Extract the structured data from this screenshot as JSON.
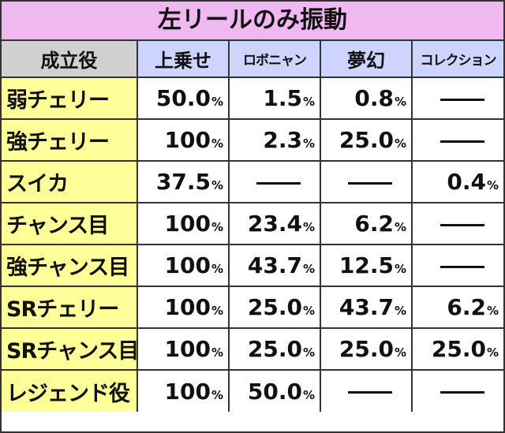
{
  "title": "左リールのみ振動",
  "headers": [
    "成立役",
    "上乗せ",
    "ロボニャン",
    "夢幻",
    "コレクション"
  ],
  "rows": [
    {
      "label": "弱チェリー",
      "values": [
        "50.0",
        "1.5",
        "0.8",
        null
      ]
    },
    {
      "label": "強チェリー",
      "values": [
        "100",
        "2.3",
        "25.0",
        null
      ]
    },
    {
      "label": "スイカ",
      "values": [
        "37.5",
        null,
        null,
        "0.4"
      ]
    },
    {
      "label": "チャンス目",
      "values": [
        "100",
        "23.4",
        "6.2",
        null
      ]
    },
    {
      "label": "強チャンス目",
      "values": [
        "100",
        "43.7",
        "12.5",
        null
      ]
    },
    {
      "label": "SRチェリー",
      "values": [
        "100",
        "25.0",
        "43.7",
        "6.2"
      ]
    },
    {
      "label": "SRチャンス目",
      "values": [
        "100",
        "25.0",
        "25.0",
        "25.0"
      ]
    },
    {
      "label": "レジェンド役",
      "values": [
        "100",
        "50.0",
        null,
        null
      ]
    }
  ],
  "unit": "%",
  "colors": {
    "title_bg": "#f0b8f0",
    "header_role_bg": "#d0d0d0",
    "header_col_bg": "#ccd4ff",
    "row_label_bg": "#ffff99"
  }
}
